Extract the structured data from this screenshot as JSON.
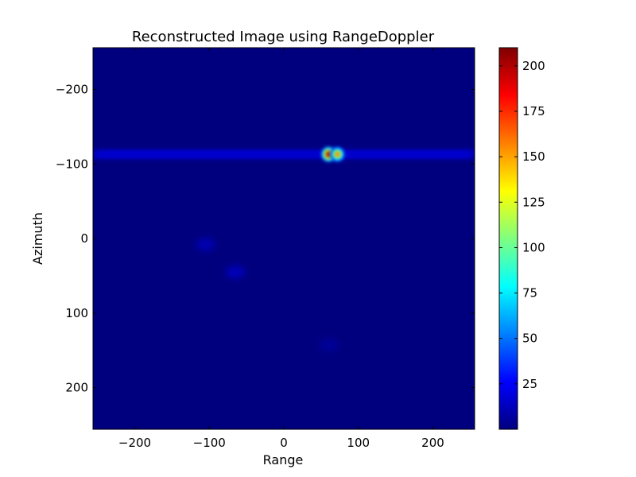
{
  "chart_data": {
    "type": "heatmap",
    "title": "Reconstructed Image using RangeDoppler",
    "xlabel": "Range",
    "ylabel": "Azimuth",
    "xlim": [
      -256,
      256
    ],
    "ylim": [
      256,
      -256
    ],
    "y_inverted": true,
    "xticks": [
      -200,
      -100,
      0,
      100,
      200
    ],
    "yticks": [
      -200,
      -100,
      0,
      100,
      200
    ],
    "xtick_labels": [
      "−200",
      "−100",
      "0",
      "100",
      "200"
    ],
    "ytick_labels": [
      "−200",
      "−100",
      "0",
      "100",
      "200"
    ],
    "colormap": "jet",
    "background_value": 0,
    "colorbar": {
      "min": 0,
      "max": 210,
      "ticks": [
        25,
        50,
        75,
        100,
        125,
        150,
        175,
        200
      ],
      "tick_labels": [
        "25",
        "50",
        "75",
        "100",
        "125",
        "150",
        "175",
        "200"
      ]
    },
    "features": [
      {
        "kind": "point",
        "range": 60,
        "azimuth": -113,
        "peak": 210
      },
      {
        "kind": "point",
        "range": 72,
        "azimuth": -113,
        "peak": 160
      },
      {
        "kind": "streak",
        "azimuth": -113,
        "range_from": -256,
        "range_to": 256,
        "level": 18
      },
      {
        "kind": "blob",
        "range": -65,
        "azimuth": 45,
        "level": 14
      },
      {
        "kind": "blob",
        "range": -105,
        "azimuth": 8,
        "level": 12
      },
      {
        "kind": "blob",
        "range": 60,
        "azimuth": 143,
        "level": 6
      }
    ]
  }
}
